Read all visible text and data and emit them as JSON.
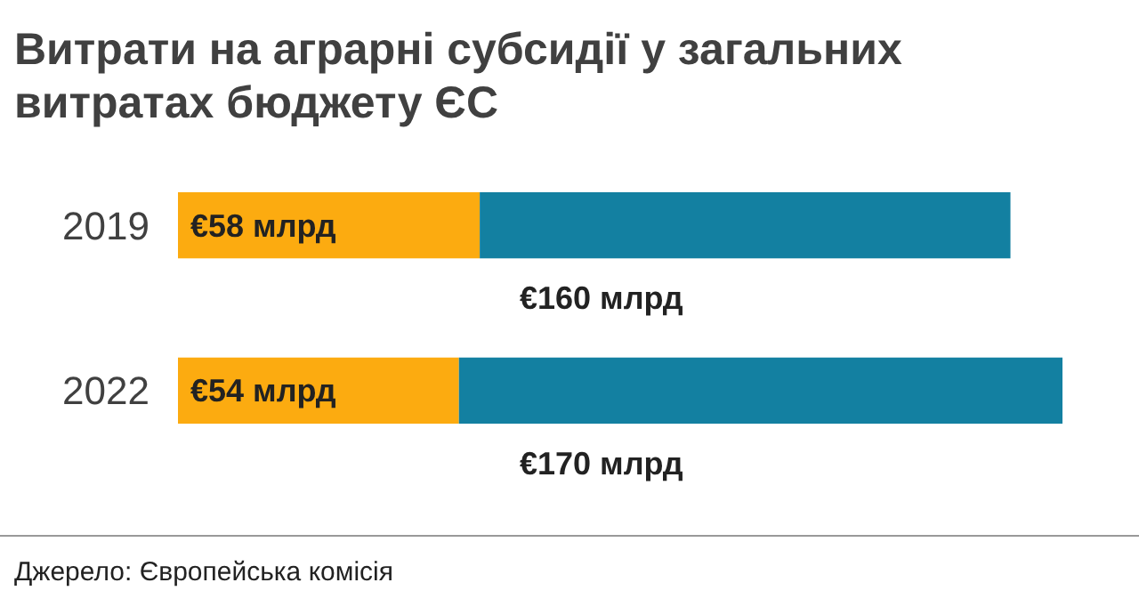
{
  "chart_data": {
    "type": "bar",
    "orientation": "horizontal",
    "stacked": true,
    "title": "Витрати на аграрні субсидії у загальних витратах бюджету ЄС",
    "categories": [
      "2019",
      "2022"
    ],
    "series": [
      {
        "color": "#fcab10",
        "values": [
          58,
          54
        ],
        "value_labels": [
          "€58 млрд",
          "€54 млрд"
        ]
      },
      {
        "color": "#1380a1",
        "values": [
          102,
          116
        ]
      }
    ],
    "totals": [
      "€160 млрд",
      "€170 млрд"
    ],
    "annotations": [
      "Джерело: Європейська комісія"
    ]
  }
}
